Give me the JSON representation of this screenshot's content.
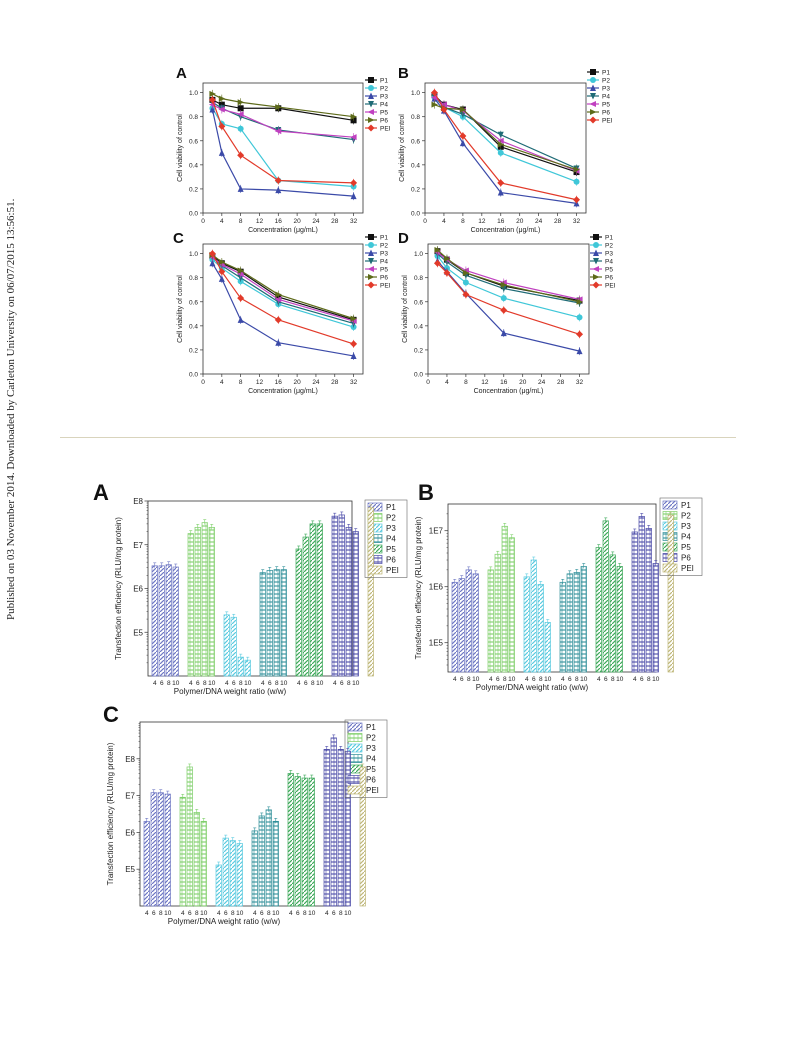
{
  "side_note": "Published on 03 November 2014. Downloaded by Carleton University on 06/07/2015 13:56:51.",
  "chart_data": [
    {
      "panel": "A",
      "type": "line",
      "x": [
        2,
        4,
        8,
        16,
        32
      ],
      "xticks": [
        0,
        4,
        8,
        12,
        16,
        20,
        24,
        28,
        32
      ],
      "yticks": [
        0.0,
        0.2,
        0.4,
        0.6,
        0.8,
        1.0
      ],
      "xlabel": "Concentration (μg/mL)",
      "ylabel": "Cell viability of control",
      "xlim": [
        0,
        34
      ],
      "ylim": [
        0,
        1.08
      ],
      "series": [
        {
          "name": "P1",
          "color": "#111111",
          "marker": "square",
          "values": [
            0.94,
            0.9,
            0.87,
            0.87,
            0.77
          ]
        },
        {
          "name": "P2",
          "color": "#3fc7d8",
          "marker": "circle",
          "values": [
            0.87,
            0.74,
            0.7,
            0.27,
            0.22
          ]
        },
        {
          "name": "P3",
          "color": "#3b4aa8",
          "marker": "triangle-up",
          "values": [
            0.86,
            0.5,
            0.2,
            0.19,
            0.14
          ]
        },
        {
          "name": "P4",
          "color": "#1f6b76",
          "marker": "triangle-down",
          "values": [
            0.92,
            0.87,
            0.8,
            0.69,
            0.61
          ]
        },
        {
          "name": "P5",
          "color": "#c040c0",
          "marker": "triangle-left",
          "values": [
            0.9,
            0.86,
            0.82,
            0.68,
            0.63
          ]
        },
        {
          "name": "P6",
          "color": "#5e6b1a",
          "marker": "triangle-right",
          "values": [
            0.99,
            0.95,
            0.92,
            0.88,
            0.8
          ]
        },
        {
          "name": "PEI",
          "color": "#e23a2a",
          "marker": "diamond",
          "values": [
            0.94,
            0.72,
            0.48,
            0.27,
            0.25
          ]
        }
      ]
    },
    {
      "panel": "B",
      "type": "line",
      "x": [
        2,
        4,
        8,
        16,
        32
      ],
      "xticks": [
        0,
        4,
        8,
        12,
        16,
        20,
        24,
        28,
        32
      ],
      "yticks": [
        0.0,
        0.2,
        0.4,
        0.6,
        0.8,
        1.0
      ],
      "xlabel": "Concentration (μg/mL)",
      "ylabel": "Cell viability of control",
      "xlim": [
        0,
        34
      ],
      "ylim": [
        0,
        1.08
      ],
      "series": [
        {
          "name": "P1",
          "color": "#111111",
          "marker": "square",
          "values": [
            0.98,
            0.9,
            0.86,
            0.55,
            0.34
          ]
        },
        {
          "name": "P2",
          "color": "#3fc7d8",
          "marker": "circle",
          "values": [
            0.96,
            0.88,
            0.8,
            0.5,
            0.26
          ]
        },
        {
          "name": "P3",
          "color": "#3b4aa8",
          "marker": "triangle-up",
          "values": [
            0.95,
            0.85,
            0.58,
            0.17,
            0.08
          ]
        },
        {
          "name": "P4",
          "color": "#1f6b76",
          "marker": "triangle-down",
          "values": [
            0.97,
            0.88,
            0.82,
            0.65,
            0.37
          ]
        },
        {
          "name": "P5",
          "color": "#c040c0",
          "marker": "triangle-left",
          "values": [
            0.96,
            0.9,
            0.85,
            0.6,
            0.35
          ]
        },
        {
          "name": "P6",
          "color": "#5e6b1a",
          "marker": "triangle-right",
          "values": [
            0.9,
            0.87,
            0.86,
            0.57,
            0.36
          ]
        },
        {
          "name": "PEI",
          "color": "#e23a2a",
          "marker": "diamond",
          "values": [
            1.0,
            0.86,
            0.64,
            0.25,
            0.11
          ]
        }
      ]
    },
    {
      "panel": "C",
      "type": "line",
      "x": [
        2,
        4,
        8,
        16,
        32
      ],
      "xticks": [
        0,
        4,
        8,
        12,
        16,
        20,
        24,
        28,
        32
      ],
      "yticks": [
        0.0,
        0.2,
        0.4,
        0.6,
        0.8,
        1.0
      ],
      "xlabel": "Concentration (μg/mL)",
      "ylabel": "Cell viability of control",
      "xlim": [
        0,
        34
      ],
      "ylim": [
        0,
        1.08
      ],
      "series": [
        {
          "name": "P1",
          "color": "#111111",
          "marker": "square",
          "values": [
            0.98,
            0.92,
            0.85,
            0.64,
            0.45
          ]
        },
        {
          "name": "P2",
          "color": "#3fc7d8",
          "marker": "circle",
          "values": [
            0.95,
            0.88,
            0.77,
            0.58,
            0.39
          ]
        },
        {
          "name": "P3",
          "color": "#3b4aa8",
          "marker": "triangle-up",
          "values": [
            0.92,
            0.79,
            0.45,
            0.26,
            0.15
          ]
        },
        {
          "name": "P4",
          "color": "#1f6b76",
          "marker": "triangle-down",
          "values": [
            0.97,
            0.9,
            0.8,
            0.6,
            0.42
          ]
        },
        {
          "name": "P5",
          "color": "#c040c0",
          "marker": "triangle-left",
          "values": [
            0.97,
            0.91,
            0.83,
            0.62,
            0.44
          ]
        },
        {
          "name": "P6",
          "color": "#5e6b1a",
          "marker": "triangle-right",
          "values": [
            0.99,
            0.93,
            0.86,
            0.66,
            0.46
          ]
        },
        {
          "name": "PEI",
          "color": "#e23a2a",
          "marker": "diamond",
          "values": [
            1.0,
            0.85,
            0.63,
            0.45,
            0.25
          ]
        }
      ]
    },
    {
      "panel": "D",
      "type": "line",
      "x": [
        2,
        4,
        8,
        16,
        32
      ],
      "xticks": [
        0,
        4,
        8,
        12,
        16,
        20,
        24,
        28,
        32
      ],
      "yticks": [
        0.0,
        0.2,
        0.4,
        0.6,
        0.8,
        1.0
      ],
      "xlabel": "Concentration (μg/mL)",
      "ylabel": "Cell viability of control",
      "xlim": [
        0,
        34
      ],
      "ylim": [
        0,
        1.08
      ],
      "series": [
        {
          "name": "P1",
          "color": "#111111",
          "marker": "square",
          "values": [
            1.02,
            0.95,
            0.84,
            0.73,
            0.61
          ]
        },
        {
          "name": "P2",
          "color": "#3fc7d8",
          "marker": "circle",
          "values": [
            0.98,
            0.88,
            0.76,
            0.63,
            0.47
          ]
        },
        {
          "name": "P3",
          "color": "#3b4aa8",
          "marker": "triangle-up",
          "values": [
            0.94,
            0.85,
            0.67,
            0.34,
            0.19
          ]
        },
        {
          "name": "P4",
          "color": "#1f6b76",
          "marker": "triangle-down",
          "values": [
            1.0,
            0.93,
            0.82,
            0.71,
            0.59
          ]
        },
        {
          "name": "P5",
          "color": "#c040c0",
          "marker": "triangle-left",
          "values": [
            1.01,
            0.95,
            0.86,
            0.76,
            0.62
          ]
        },
        {
          "name": "P6",
          "color": "#5e6b1a",
          "marker": "triangle-right",
          "values": [
            1.03,
            0.96,
            0.84,
            0.74,
            0.6
          ]
        },
        {
          "name": "PEI",
          "color": "#e23a2a",
          "marker": "diamond",
          "values": [
            0.92,
            0.84,
            0.66,
            0.53,
            0.33
          ]
        }
      ]
    },
    {
      "panel": "A",
      "type": "bar",
      "log_scale": true,
      "ylabel": "Transfection efficiency (RLU/mg protein)",
      "xlabel": "Polymer/DNA weight ratio (w/w)",
      "ylim": [
        10000,
        100000000
      ],
      "yticks": [
        {
          "label": "E5",
          "value": 100000
        },
        {
          "label": "E6",
          "value": 1000000
        },
        {
          "label": "E7",
          "value": 10000000
        },
        {
          "label": "E8",
          "value": 100000000
        }
      ],
      "ratio_labels": [
        "4",
        "6",
        "8",
        "10"
      ],
      "series": [
        {
          "name": "P1",
          "color": "#6f78c4",
          "values": [
            3300000,
            3300000,
            3500000,
            3100000
          ]
        },
        {
          "name": "P2",
          "color": "#7fcf6a",
          "values": [
            18000000,
            25000000,
            32000000,
            25000000
          ]
        },
        {
          "name": "P3",
          "color": "#5ccbe0",
          "values": [
            250000,
            220000,
            27000,
            23000
          ]
        },
        {
          "name": "P4",
          "color": "#2f8f99",
          "values": [
            2300000,
            2600000,
            2700000,
            2700000
          ]
        },
        {
          "name": "P5",
          "color": "#3da85a",
          "values": [
            8000000,
            15000000,
            30000000,
            30000000
          ]
        },
        {
          "name": "P6",
          "color": "#4a4aa8",
          "values": [
            45000000,
            48000000,
            25000000,
            20000000
          ]
        },
        {
          "name": "PEI",
          "color": "#bfb779",
          "values": [
            70000000
          ]
        }
      ]
    },
    {
      "panel": "B",
      "type": "bar",
      "log_scale": true,
      "ylabel": "Transfection efficiency (RLU/mg protein)",
      "xlabel": "Polymer/DNA weight ratio (w/w)",
      "ylim": [
        30000,
        30000000
      ],
      "yticks": [
        {
          "label": "1E5",
          "value": 100000
        },
        {
          "label": "1E6",
          "value": 1000000
        },
        {
          "label": "1E7",
          "value": 10000000
        }
      ],
      "ratio_labels": [
        "4",
        "6",
        "8",
        "10"
      ],
      "series": [
        {
          "name": "P1",
          "color": "#6f78c4",
          "values": [
            1200000,
            1400000,
            2000000,
            1700000
          ]
        },
        {
          "name": "P2",
          "color": "#7fcf6a",
          "values": [
            2000000,
            3800000,
            12000000,
            7500000
          ]
        },
        {
          "name": "P3",
          "color": "#5ccbe0",
          "values": [
            1500000,
            3000000,
            1100000,
            230000
          ]
        },
        {
          "name": "P4",
          "color": "#2f8f99",
          "values": [
            1200000,
            1700000,
            1800000,
            2300000
          ]
        },
        {
          "name": "P5",
          "color": "#3da85a",
          "values": [
            5000000,
            15000000,
            3700000,
            2300000
          ]
        },
        {
          "name": "P6",
          "color": "#4a4aa8",
          "values": [
            9500000,
            18000000,
            11000000,
            2600000
          ]
        },
        {
          "name": "PEI",
          "color": "#bfb779",
          "values": [
            19000000
          ]
        }
      ]
    },
    {
      "panel": "C",
      "type": "bar",
      "log_scale": true,
      "ylabel": "Transfection efficiency (RLU/mg protein)",
      "xlabel": "Polymer/DNA weight ratio (w/w)",
      "ylim": [
        10000,
        1000000000
      ],
      "yticks": [
        {
          "label": "E5",
          "value": 100000
        },
        {
          "label": "E6",
          "value": 1000000
        },
        {
          "label": "E7",
          "value": 10000000
        },
        {
          "label": "E8",
          "value": 100000000
        }
      ],
      "ratio_labels": [
        "4",
        "6",
        "8",
        "10"
      ],
      "series": [
        {
          "name": "P1",
          "color": "#6f78c4",
          "values": [
            2000000,
            12000000,
            12000000,
            11000000
          ]
        },
        {
          "name": "P2",
          "color": "#7fcf6a",
          "values": [
            9000000,
            60000000,
            3500000,
            2000000
          ]
        },
        {
          "name": "P3",
          "color": "#5ccbe0",
          "values": [
            130000,
            700000,
            600000,
            500000
          ]
        },
        {
          "name": "P4",
          "color": "#2f8f99",
          "values": [
            1100000,
            2800000,
            4100000,
            2000000
          ]
        },
        {
          "name": "P5",
          "color": "#3da85a",
          "values": [
            40000000,
            33000000,
            30000000,
            30000000
          ]
        },
        {
          "name": "P6",
          "color": "#4a4aa8",
          "values": [
            180000000,
            370000000,
            180000000,
            160000000
          ]
        },
        {
          "name": "PEI",
          "color": "#bfb779",
          "values": [
            60000000
          ]
        }
      ]
    }
  ]
}
